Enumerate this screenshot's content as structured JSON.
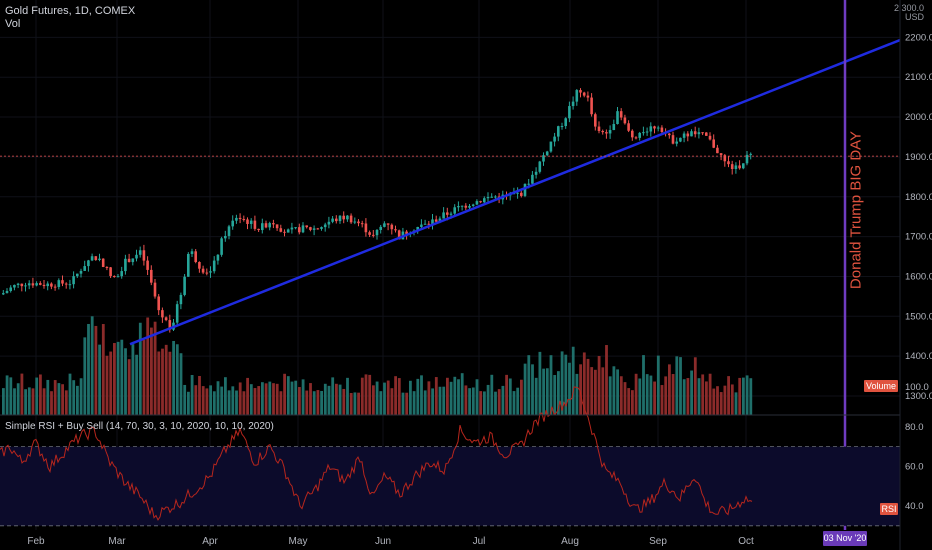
{
  "header": {
    "title": "Gold Futures, 1D, COMEX",
    "volume_label": "Vol"
  },
  "currency_label": "USD",
  "rsi": {
    "title": "Simple RSI + Buy Sell (14, 70, 30, 3, 10, 2020, 10, 10, 2020)",
    "badge": "RSI",
    "ticks": [
      "100.0",
      "80.0",
      "60.0",
      "40.0"
    ],
    "upper_level": 70,
    "lower_level": 30
  },
  "volume_badge": "Volume",
  "annotation": "Donald Trump BIG DAY",
  "date_badge": "03 Nov '20",
  "price_axis": {
    "ticks": [
      "2200.0",
      "2100.0",
      "2000.0",
      "1900.0",
      "1800.0",
      "1700.0",
      "1600.0",
      "1500.0",
      "1400.0",
      "1300.0"
    ],
    "top_partial": "2 300.0"
  },
  "time_axis": [
    "Feb",
    "Mar",
    "Apr",
    "May",
    "Jun",
    "Jul",
    "Aug",
    "Sep",
    "Oct"
  ],
  "colors": {
    "background": "#000000",
    "up": "#26a69a",
    "down": "#ef5350",
    "trendline": "#1f2be0",
    "vertical_marker": "#6f3cc1",
    "rsi_line": "#b7261d",
    "rsi_band": "#0c0b2b",
    "text": "#b2b5be"
  },
  "chart_data": {
    "type": "candlestick",
    "symbol": "Gold Futures",
    "interval": "1D",
    "exchange": "COMEX",
    "y_range": [
      1260,
      2310
    ],
    "price_anchors": [
      {
        "month": "Feb",
        "price": 1580
      },
      {
        "month": "Mar",
        "price": 1640
      },
      {
        "month": "Mar (mid)",
        "price": 1470
      },
      {
        "month": "Apr",
        "price": 1620
      },
      {
        "month": "Apr (mid)",
        "price": 1760
      },
      {
        "month": "May",
        "price": 1720
      },
      {
        "month": "Jun",
        "price": 1720
      },
      {
        "month": "Jul",
        "price": 1790
      },
      {
        "month": "Aug",
        "price": 2060
      },
      {
        "month": "Aug (mid)",
        "price": 1960
      },
      {
        "month": "Sep",
        "price": 1970
      },
      {
        "month": "Oct",
        "price": 1910
      }
    ],
    "last_price": 1902,
    "trendline": {
      "start": [
        "Mar",
        1430
      ],
      "end": [
        "Nov",
        2120
      ]
    },
    "event_marker": "03 Nov '20",
    "rsi_range": [
      20,
      105
    ],
    "rsi_levels": [
      70,
      30
    ]
  }
}
